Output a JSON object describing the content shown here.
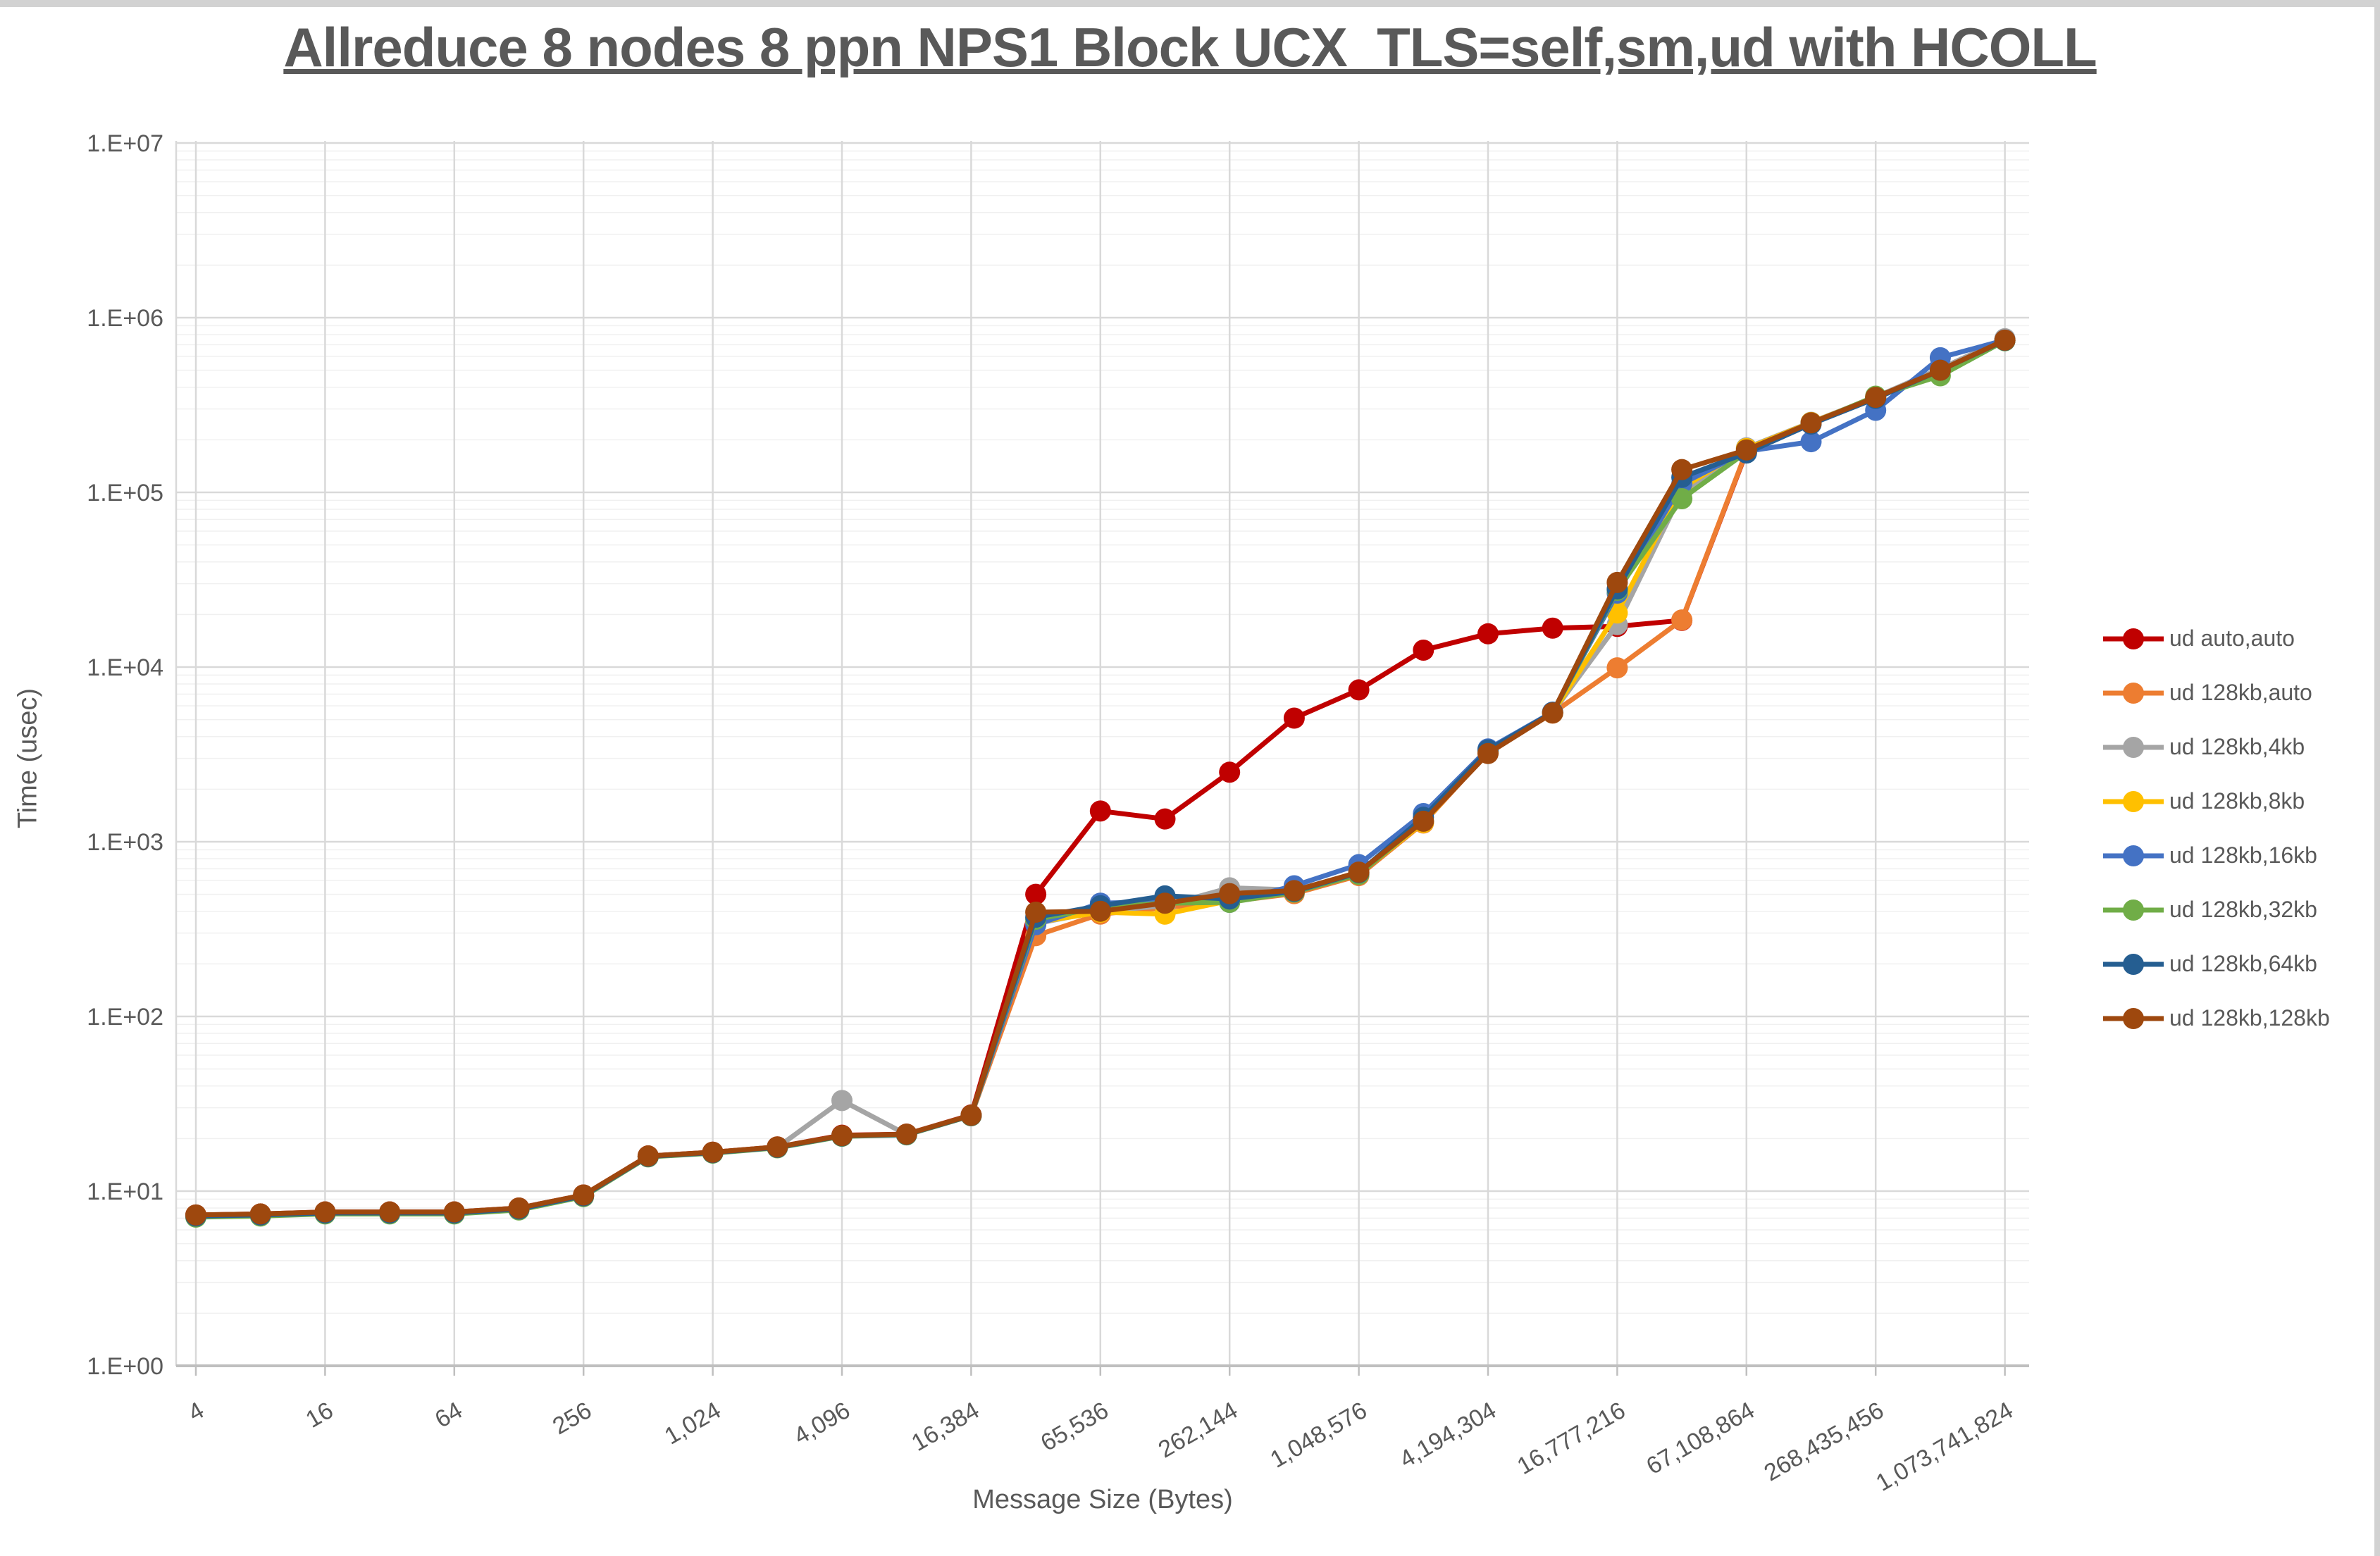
{
  "title": "Allreduce 8 nodes 8 ppn NPS1 Block UCX_TLS=self,sm,ud with HCOLL",
  "axes": {
    "y_title": "Time (usec)",
    "x_title": "Message Size (Bytes)",
    "y_tick_labels": [
      "1.E+00",
      "1.E+01",
      "1.E+02",
      "1.E+03",
      "1.E+04",
      "1.E+05",
      "1.E+06",
      "1.E+07"
    ],
    "x_tick_labels": [
      "4",
      "16",
      "64",
      "256",
      "1,024",
      "4,096",
      "16,384",
      "65,536",
      "262,144",
      "1,048,576",
      "4,194,304",
      "16,777,216",
      "67,108,864",
      "268,435,456",
      "1,073,741,824"
    ]
  },
  "colors": {
    "text": "#595959",
    "grid_major": "#d9d9d9",
    "grid_minor": "#f0f0f0",
    "axis_line": "#bfbfbf"
  },
  "chart_data": {
    "type": "line",
    "title": "Allreduce 8 nodes 8 ppn NPS1 Block UCX_TLS=self,sm,ud with HCOLL",
    "xlabel": "Message Size (Bytes)",
    "ylabel": "Time (usec)",
    "x_scale": "log",
    "y_scale": "log",
    "ylim": [
      1,
      10000000
    ],
    "xlim": [
      4,
      1073741824
    ],
    "grid": "major+minor horizontal, major vertical",
    "legend_position": "right",
    "x": [
      4,
      8,
      16,
      32,
      64,
      128,
      256,
      512,
      1024,
      2048,
      4096,
      8192,
      16384,
      32768,
      65536,
      131072,
      262144,
      524288,
      1048576,
      2097152,
      4194304,
      8388608,
      16777216,
      33554432,
      67108864,
      134217728,
      268435456,
      536870912,
      1073741824
    ],
    "x_tick_values": [
      4,
      16,
      64,
      256,
      1024,
      4096,
      16384,
      65536,
      262144,
      1048576,
      4194304,
      16777216,
      67108864,
      268435456,
      1073741824
    ],
    "series": [
      {
        "name": "ud auto,auto",
        "color": "#C00000",
        "values": [
          7.3,
          7.4,
          7.6,
          7.6,
          7.6,
          8.0,
          9.5,
          15.9,
          16.7,
          17.9,
          20.9,
          21.2,
          27.3,
          500,
          1500,
          1350,
          2500,
          5100,
          7400,
          12500,
          15500,
          16700,
          17100,
          18500,
          170000,
          null,
          null,
          null,
          null
        ]
      },
      {
        "name": "ud 128kb,auto",
        "color": "#ED7D31",
        "values": [
          7.2,
          7.3,
          7.5,
          7.5,
          7.5,
          7.9,
          9.4,
          15.8,
          16.6,
          17.8,
          20.7,
          21.1,
          27.0,
          290,
          385,
          420,
          455,
          505,
          640,
          1280,
          3250,
          5450,
          9900,
          18600,
          172000,
          248000,
          348000,
          505000,
          742000
        ]
      },
      {
        "name": "ud 128kb,4kb",
        "color": "#A5A5A5",
        "values": [
          7.2,
          7.3,
          7.5,
          7.5,
          7.5,
          7.9,
          9.4,
          15.8,
          16.6,
          17.8,
          33.0,
          21.1,
          27.1,
          340,
          400,
          430,
          545,
          530,
          660,
          1300,
          3350,
          5500,
          17500,
          100000,
          180000,
          252000,
          352000,
          510000,
          758000
        ]
      },
      {
        "name": "ud 128kb,8kb",
        "color": "#FFC000",
        "values": [
          7.2,
          7.3,
          7.5,
          7.5,
          7.5,
          7.9,
          9.4,
          15.8,
          16.6,
          17.8,
          20.7,
          21.1,
          27.1,
          345,
          395,
          385,
          460,
          515,
          655,
          1290,
          3300,
          5480,
          20400,
          106000,
          178000,
          251000,
          350000,
          495000,
          740000
        ]
      },
      {
        "name": "ud 128kb,16kb",
        "color": "#4472C4",
        "values": [
          7.2,
          7.3,
          7.5,
          7.5,
          7.5,
          7.9,
          9.4,
          15.8,
          16.6,
          17.8,
          20.7,
          21.1,
          27.1,
          335,
          445,
          455,
          450,
          560,
          740,
          1450,
          3400,
          5520,
          26500,
          112000,
          172000,
          195000,
          295000,
          590000,
          745000
        ]
      },
      {
        "name": "ud 128kb,32kb",
        "color": "#70AD47",
        "values": [
          7.1,
          7.2,
          7.4,
          7.4,
          7.4,
          7.8,
          9.3,
          15.7,
          16.5,
          17.7,
          20.6,
          21.0,
          27.0,
          360,
          420,
          445,
          450,
          515,
          650,
          1320,
          3300,
          5470,
          27500,
          92000,
          170000,
          248000,
          355000,
          465000,
          738000
        ]
      },
      {
        "name": "ud 128kb,64kb",
        "color": "#255E91",
        "values": [
          7.2,
          7.3,
          7.5,
          7.5,
          7.5,
          7.9,
          9.4,
          15.8,
          16.6,
          17.8,
          20.7,
          21.1,
          27.1,
          370,
          430,
          490,
          470,
          520,
          665,
          1380,
          3350,
          5500,
          28000,
          122000,
          168000,
          246000,
          345000,
          500000,
          741000
        ]
      },
      {
        "name": "ud 128kb,128kb",
        "color": "#9E480E",
        "values": [
          7.3,
          7.4,
          7.6,
          7.6,
          7.6,
          8.0,
          9.5,
          15.9,
          16.7,
          17.9,
          20.8,
          21.2,
          27.2,
          395,
          400,
          445,
          505,
          525,
          670,
          1310,
          3200,
          5460,
          30500,
          135000,
          175000,
          250000,
          350000,
          500000,
          744000
        ]
      }
    ]
  }
}
